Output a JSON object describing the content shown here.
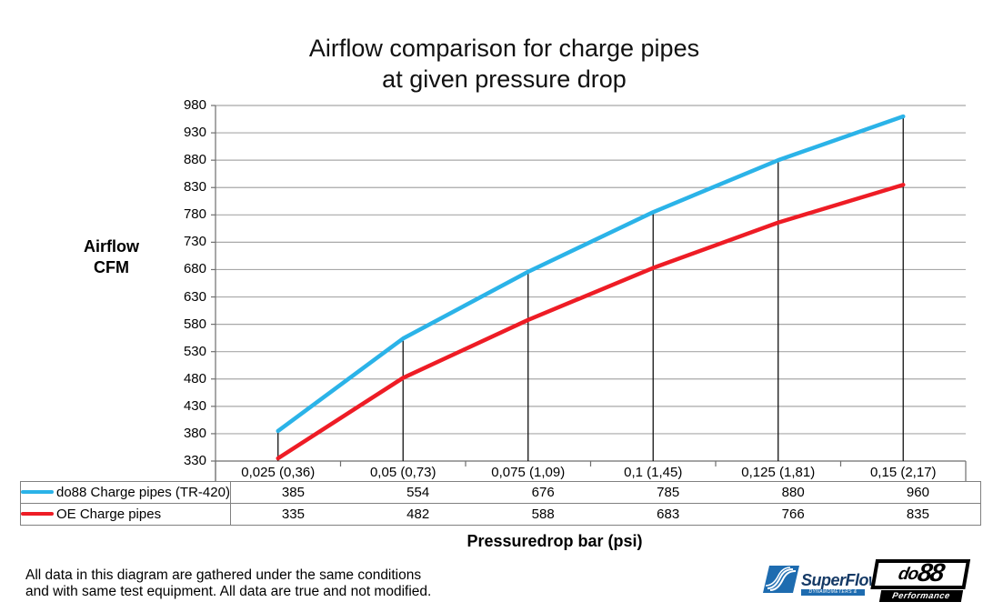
{
  "title_line1": "Airflow comparison for charge pipes",
  "title_line2": "at given pressure drop",
  "y_axis_title_line1": "Airflow",
  "y_axis_title_line2": "CFM",
  "x_axis_title": "Pressuredrop bar (psi)",
  "footnote_line1": "All data in this diagram are gathered under the same conditions",
  "footnote_line2": "and with same test equipment. All data are true and not modified.",
  "chart_data": {
    "type": "line",
    "title": "Airflow comparison for charge pipes at given pressure drop",
    "xlabel": "Pressuredrop bar (psi)",
    "ylabel": "Airflow CFM",
    "categories": [
      "0,025 (0,36)",
      "0,05 (0,73)",
      "0,075 (1,09)",
      "0,1 (1,45)",
      "0,125 (1,81)",
      "0,15 (2,17)"
    ],
    "series": [
      {
        "name": "do88 Charge pipes (TR-420)",
        "color": "#2bb3e8",
        "values": [
          385,
          554,
          676,
          785,
          880,
          960
        ]
      },
      {
        "name": "OE Charge pipes",
        "color": "#ee1c25",
        "values": [
          335,
          482,
          588,
          683,
          766,
          835
        ]
      }
    ],
    "ylim": [
      330,
      980
    ],
    "ytick_step": 50,
    "grid": true,
    "drop_lines": true,
    "legend_position": "table-left",
    "grid_color": "#a8a8a8",
    "axis_color": "#6e6e6e",
    "table_border_color": "#808080"
  },
  "logos": {
    "superflow": {
      "text": "SuperFlow",
      "trademark": "™",
      "tagline": "DYNAMOMETERS & FLOWBENCHES",
      "bar_color": "#1e6cb0",
      "text_color": "#163a66"
    },
    "do88": {
      "text_do": "do",
      "text_88": "88",
      "subtext": "Performance"
    }
  }
}
